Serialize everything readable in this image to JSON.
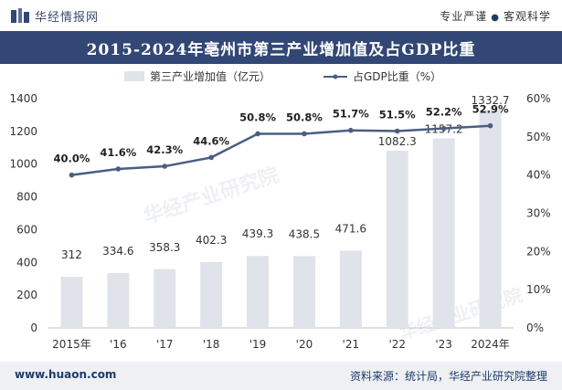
{
  "header": {
    "brand": "华经情报网",
    "slogan_left": "专业严谨",
    "slogan_right": "客观科学"
  },
  "title": "2015-2024年亳州市第三产业增加值及占GDP比重",
  "watermark": "华经产业研究院",
  "footer": {
    "website": "www.huaon.com",
    "source": "资料来源：统计局，华经产业研究院整理"
  },
  "colors": {
    "bar": "#e0e3ea",
    "line": "#4a5d84",
    "title_bg": "#324775"
  },
  "chart_data": {
    "type": "bar",
    "categories": [
      "2015年",
      "'16",
      "'17",
      "'18",
      "'19",
      "'20",
      "'21",
      "'22",
      "'23",
      "2024年"
    ],
    "series": [
      {
        "name": "第三产业增加值（亿元）",
        "type": "bar",
        "axis": "left",
        "values": [
          312,
          334.6,
          358.3,
          402.3,
          439.3,
          438.5,
          471.6,
          1082.3,
          1157.2,
          1332.7
        ],
        "labels": [
          "312",
          "334.6",
          "358.3",
          "402.3",
          "439.3",
          "438.5",
          "471.6",
          "1082.3",
          "1157.2",
          "1332.7"
        ]
      },
      {
        "name": "占GDP比重（%）",
        "type": "line",
        "axis": "right",
        "values": [
          40.0,
          41.6,
          42.3,
          44.6,
          50.8,
          50.8,
          51.7,
          51.5,
          52.2,
          52.9
        ],
        "labels": [
          "40.0%",
          "41.6%",
          "42.3%",
          "44.6%",
          "50.8%",
          "50.8%",
          "51.7%",
          "51.5%",
          "52.2%",
          "52.9%"
        ]
      }
    ],
    "y_left": {
      "ylim": [
        0,
        1400
      ],
      "ticks": [
        "0",
        "200",
        "400",
        "600",
        "800",
        "1000",
        "1200",
        "1400"
      ]
    },
    "y_right": {
      "ylim": [
        0,
        60
      ],
      "ticks": [
        "0%",
        "10%",
        "20%",
        "30%",
        "40%",
        "50%",
        "60%"
      ]
    },
    "legend_position": "top-center",
    "grid": false
  }
}
